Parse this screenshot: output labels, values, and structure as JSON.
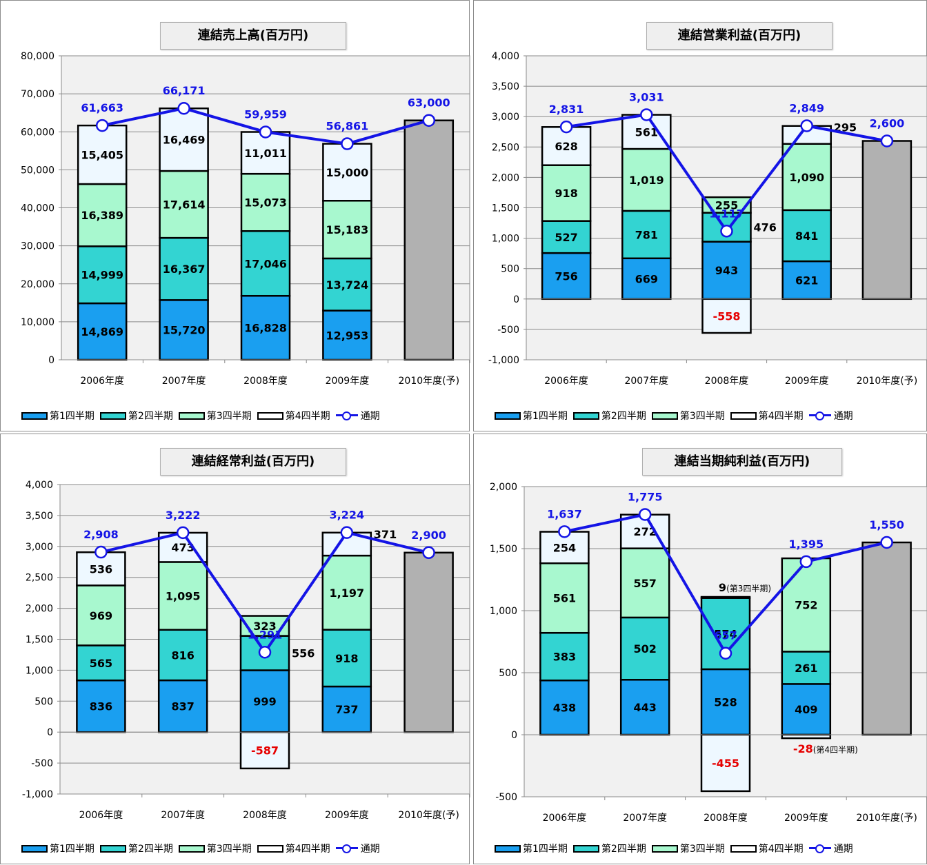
{
  "legend": {
    "q1": "第1四半期",
    "q2": "第2四半期",
    "q3": "第3四半期",
    "q4": "第4四半期",
    "full": "通期"
  },
  "colors": {
    "q1": "#1a9ff0",
    "q2": "#33d4d2",
    "q3": "#a8f8cf",
    "q4": "#eef8ff",
    "forecast": "#b1b1b1",
    "line": "#1414e6",
    "negative_label": "#e60000"
  },
  "chart_data": [
    {
      "type": "bar",
      "title": "連結売上高(百万円)",
      "categories": [
        "2006年度",
        "2007年度",
        "2008年度",
        "2009年度",
        "2010年度(予)"
      ],
      "ylim": [
        0,
        80000
      ],
      "yticks": [
        "0",
        "10,000",
        "20,000",
        "30,000",
        "40,000",
        "50,000",
        "60,000",
        "70,000",
        "80,000"
      ],
      "grid": true,
      "legend_position": "bottom",
      "series": [
        {
          "name": "第1四半期",
          "values": [
            14869,
            15720,
            16828,
            12953,
            null
          ],
          "labels": [
            "14,869",
            "15,720",
            "16,828",
            "12,953",
            ""
          ]
        },
        {
          "name": "第2四半期",
          "values": [
            14999,
            16367,
            17046,
            13724,
            null
          ],
          "labels": [
            "14,999",
            "16,367",
            "17,046",
            "13,724",
            ""
          ]
        },
        {
          "name": "第3四半期",
          "values": [
            16389,
            17614,
            15073,
            15183,
            null
          ],
          "labels": [
            "16,389",
            "17,614",
            "15,073",
            "15,183",
            ""
          ]
        },
        {
          "name": "第4四半期",
          "values": [
            15405,
            16469,
            11011,
            15000,
            null
          ],
          "labels": [
            "15,405",
            "16,469",
            "11,011",
            "15,000",
            ""
          ]
        }
      ],
      "forecast": {
        "value": 63000
      },
      "full_year": {
        "name": "通期",
        "values": [
          61663,
          66171,
          59959,
          56861,
          63000
        ],
        "labels": [
          "61,663",
          "66,171",
          "59,959",
          "56,861",
          "63,000"
        ]
      },
      "side_labels": [],
      "notes": []
    },
    {
      "type": "bar",
      "title": "連結営業利益(百万円)",
      "categories": [
        "2006年度",
        "2007年度",
        "2008年度",
        "2009年度",
        "2010年度(予)"
      ],
      "ylim": [
        -1000,
        4000
      ],
      "yticks": [
        "-1,000",
        "-500",
        "0",
        "500",
        "1,000",
        "1,500",
        "2,000",
        "2,500",
        "3,000",
        "3,500",
        "4,000"
      ],
      "grid": true,
      "legend_position": "bottom",
      "series": [
        {
          "name": "第1四半期",
          "values": [
            756,
            669,
            943,
            621,
            null
          ],
          "labels": [
            "756",
            "669",
            "943",
            "621",
            ""
          ]
        },
        {
          "name": "第2四半期",
          "values": [
            527,
            781,
            476,
            841,
            null
          ],
          "labels": [
            "527",
            "781",
            "",
            "841",
            ""
          ]
        },
        {
          "name": "第3四半期",
          "values": [
            918,
            1019,
            255,
            1090,
            null
          ],
          "labels": [
            "918",
            "1,019",
            "255",
            "1,090",
            ""
          ]
        },
        {
          "name": "第4四半期",
          "values": [
            628,
            561,
            -558,
            295,
            null
          ],
          "labels": [
            "628",
            "561",
            "-558",
            "",
            ""
          ]
        }
      ],
      "forecast": {
        "value": 2600
      },
      "full_year": {
        "name": "通期",
        "values": [
          2831,
          3031,
          1117,
          2849,
          2600
        ],
        "labels": [
          "2,831",
          "3,031",
          "1,117",
          "2,849",
          "2,600"
        ]
      },
      "side_labels": [
        {
          "cat": 2,
          "series": 1,
          "text": "476"
        },
        {
          "cat": 3,
          "series": 3,
          "text": "295"
        }
      ],
      "notes": []
    },
    {
      "type": "bar",
      "title": "連結経常利益(百万円)",
      "categories": [
        "2006年度",
        "2007年度",
        "2008年度",
        "2009年度",
        "2010年度(予)"
      ],
      "ylim": [
        -1000,
        4000
      ],
      "yticks": [
        "-1,000",
        "-500",
        "0",
        "500",
        "1,000",
        "1,500",
        "2,000",
        "2,500",
        "3,000",
        "3,500",
        "4,000"
      ],
      "grid": true,
      "legend_position": "bottom",
      "series": [
        {
          "name": "第1四半期",
          "values": [
            836,
            837,
            999,
            737,
            null
          ],
          "labels": [
            "836",
            "837",
            "999",
            "737",
            ""
          ]
        },
        {
          "name": "第2四半期",
          "values": [
            565,
            816,
            556,
            918,
            null
          ],
          "labels": [
            "565",
            "816",
            "",
            "918",
            ""
          ]
        },
        {
          "name": "第3四半期",
          "values": [
            969,
            1095,
            323,
            1197,
            null
          ],
          "labels": [
            "969",
            "1,095",
            "323",
            "1,197",
            ""
          ]
        },
        {
          "name": "第4四半期",
          "values": [
            536,
            473,
            -587,
            371,
            null
          ],
          "labels": [
            "536",
            "473",
            "-587",
            "",
            ""
          ]
        }
      ],
      "forecast": {
        "value": 2900
      },
      "full_year": {
        "name": "通期",
        "values": [
          2908,
          3222,
          1291,
          3224,
          2900
        ],
        "labels": [
          "2,908",
          "3,222",
          "1,291",
          "3,224",
          "2,900"
        ]
      },
      "side_labels": [
        {
          "cat": 2,
          "series": 1,
          "text": "556"
        },
        {
          "cat": 3,
          "series": 3,
          "text": "371"
        }
      ],
      "notes": []
    },
    {
      "type": "bar",
      "title": "連結当期純利益(百万円)",
      "categories": [
        "2006年度",
        "2007年度",
        "2008年度",
        "2009年度",
        "2010年度(予)"
      ],
      "ylim": [
        -500,
        2000
      ],
      "yticks": [
        "-500",
        "0",
        "500",
        "1,000",
        "1,500",
        "2,000"
      ],
      "grid": true,
      "legend_position": "bottom",
      "series": [
        {
          "name": "第1四半期",
          "values": [
            438,
            443,
            528,
            409,
            null
          ],
          "labels": [
            "438",
            "443",
            "528",
            "409",
            ""
          ]
        },
        {
          "name": "第2四半期",
          "values": [
            383,
            502,
            574,
            261,
            null
          ],
          "labels": [
            "383",
            "502",
            "574",
            "261",
            ""
          ]
        },
        {
          "name": "第3四半期",
          "values": [
            561,
            557,
            9,
            752,
            null
          ],
          "labels": [
            "561",
            "557",
            "",
            "752",
            ""
          ]
        },
        {
          "name": "第4四半期",
          "values": [
            254,
            272,
            -455,
            -28,
            null
          ],
          "labels": [
            "254",
            "272",
            "-455",
            "",
            ""
          ]
        }
      ],
      "forecast": {
        "value": 1550
      },
      "full_year": {
        "name": "通期",
        "values": [
          1637,
          1775,
          657,
          1395,
          1550
        ],
        "labels": [
          "1,637",
          "1,775",
          "657",
          "1,395",
          "1,550"
        ]
      },
      "side_labels": [],
      "notes": [
        {
          "cat": 2,
          "series": 2,
          "value_text": "9",
          "suffix": "(第3四半期)",
          "color": "#000000"
        },
        {
          "cat": 3,
          "series": 3,
          "value_text": "-28",
          "suffix": "(第4四半期)",
          "color": "#e60000"
        }
      ]
    }
  ]
}
